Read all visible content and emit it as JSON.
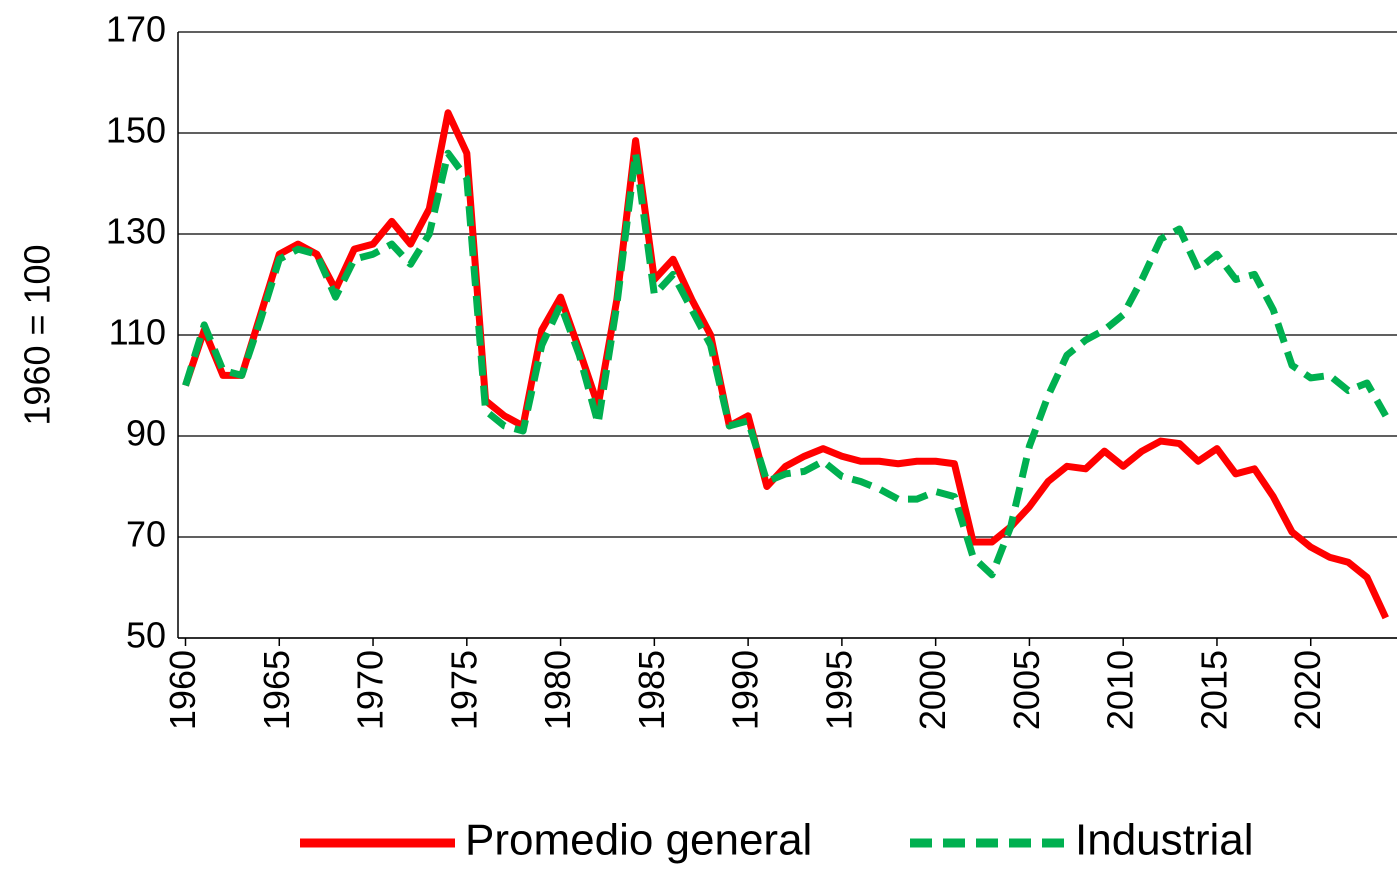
{
  "chart_data": {
    "type": "line",
    "y_label": "1960 = 100",
    "x": [
      1960,
      1961,
      1962,
      1963,
      1964,
      1965,
      1966,
      1967,
      1968,
      1969,
      1970,
      1971,
      1972,
      1973,
      1974,
      1975,
      1976,
      1977,
      1978,
      1979,
      1980,
      1981,
      1982,
      1983,
      1984,
      1985,
      1986,
      1987,
      1988,
      1989,
      1990,
      1991,
      1992,
      1993,
      1994,
      1995,
      1996,
      1997,
      1998,
      1999,
      2000,
      2001,
      2002,
      2003,
      2004,
      2005,
      2006,
      2007,
      2008,
      2009,
      2010,
      2011,
      2012,
      2013,
      2014,
      2015,
      2016,
      2017,
      2018,
      2019,
      2020,
      2021,
      2022,
      2023,
      2024
    ],
    "series": [
      {
        "name": "Promedio general",
        "color": "#ff0000",
        "line_style": "solid",
        "values": [
          100,
          111,
          102,
          102,
          114,
          126,
          128,
          126,
          119,
          127,
          128,
          132.5,
          128,
          135,
          154,
          146,
          97,
          94,
          92,
          111,
          117.5,
          107,
          96,
          117,
          148.5,
          121,
          125,
          117,
          110,
          92,
          94,
          80,
          84,
          86,
          87.5,
          86,
          85,
          85,
          84.5,
          85,
          85,
          84.5,
          69,
          69,
          72,
          76,
          81,
          84,
          83.5,
          87,
          84,
          87,
          89,
          88.5,
          85,
          87.5,
          82.5,
          83.5,
          78,
          71,
          68,
          66,
          65,
          62,
          54
        ]
      },
      {
        "name": "Industrial",
        "color": "#00b050",
        "line_style": "dashed",
        "values": [
          100,
          112,
          103,
          102,
          113,
          125,
          127,
          126,
          117.5,
          125,
          126,
          128,
          124,
          130,
          146,
          141,
          95,
          92,
          91,
          108,
          116,
          106,
          92.5,
          116,
          146,
          118,
          122,
          115,
          108,
          92,
          93,
          81,
          82.5,
          83,
          85,
          82,
          81,
          79.5,
          77.5,
          77.5,
          79,
          78,
          66,
          62.5,
          72,
          88,
          98,
          106,
          109,
          111,
          114,
          121,
          129,
          131,
          123,
          126,
          121,
          122,
          115,
          104,
          101.5,
          102,
          99,
          100.5,
          94
        ]
      }
    ],
    "xlim": [
      1959.6,
      2024.6
    ],
    "xticks": [
      1960,
      1965,
      1970,
      1975,
      1980,
      1985,
      1990,
      1995,
      2000,
      2005,
      2010,
      2015,
      2020
    ],
    "ylim": [
      50,
      170
    ],
    "yticks": [
      50,
      70,
      90,
      110,
      130,
      150,
      170
    ],
    "grid": true
  }
}
